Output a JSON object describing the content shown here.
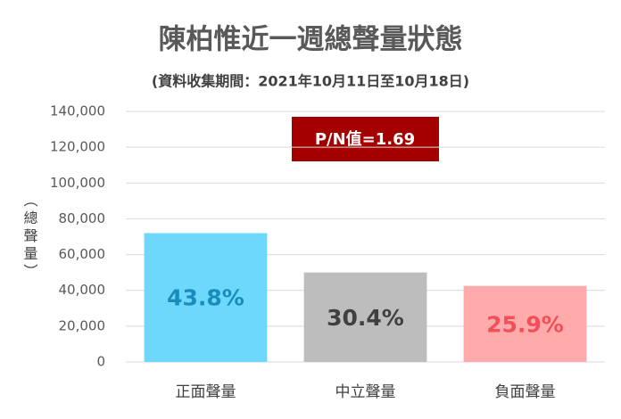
{
  "chart_data": {
    "type": "bar",
    "title": "陳柏惟近一週總聲量狀態",
    "subtitle": "(資料收集期間：2021年10月11日至10月18日)",
    "y_axis_label": "（總聲量）",
    "annotation": "P/N值=1.69",
    "categories": [
      "正面聲量",
      "中立聲量",
      "負面聲量"
    ],
    "values": [
      72000,
      50000,
      42500
    ],
    "colors": [
      "#6dd8fb",
      "#bdbdbd",
      "#ffabab"
    ],
    "shares": [
      43.8,
      30.4,
      25.9
    ],
    "share_labels": [
      "43.8%",
      "30.4%",
      "25.9%"
    ],
    "share_label_colors": [
      "#1a8cbc",
      "#404040",
      "#f0505a"
    ],
    "ylim": [
      0,
      140000
    ],
    "yticks": [
      0,
      {
        "value": 20000,
        "label": "20,000"
      },
      {
        "value": 40000,
        "label": "40,000"
      },
      {
        "value": 60000,
        "label": "60,000"
      },
      {
        "value": 80000,
        "label": "80,000"
      },
      {
        "value": 100000,
        "label": "100,000"
      },
      {
        "value": 120000,
        "label": "120,000"
      },
      {
        "value": 140000,
        "label": "140,000"
      }
    ],
    "grid": true
  }
}
